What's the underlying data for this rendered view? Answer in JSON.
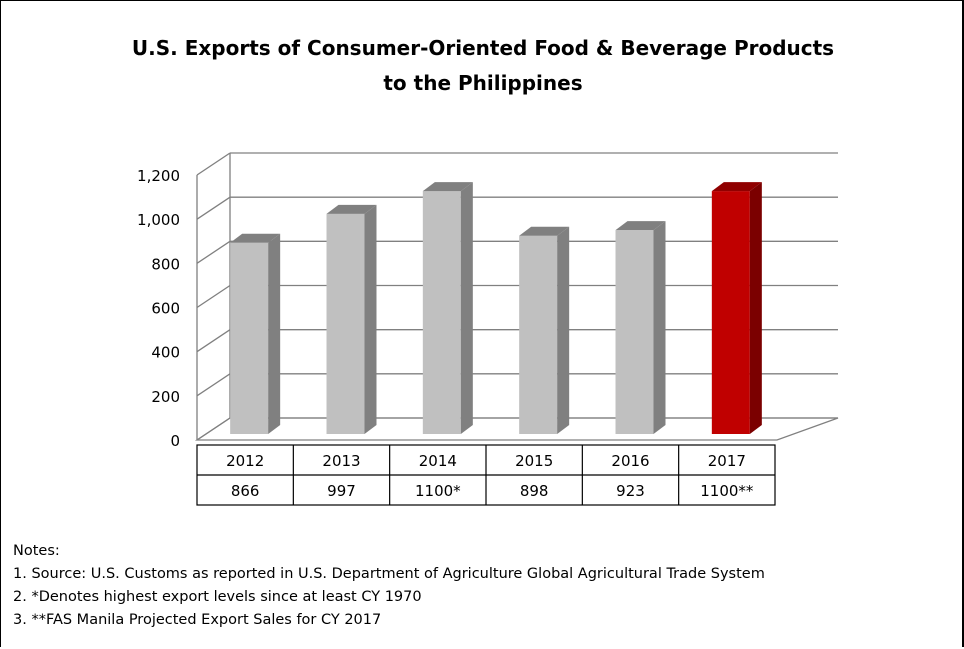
{
  "chart_data": {
    "type": "bar",
    "title_lines": [
      "U.S. Exports of  Consumer-Oriented Food & Beverage Products",
      "to the Philippines"
    ],
    "categories": [
      "2012",
      "2013",
      "2014",
      "2015",
      "2016",
      "2017"
    ],
    "values": [
      866,
      997,
      1100,
      898,
      923,
      1100
    ],
    "table_labels": [
      "866",
      "997",
      "1100*",
      "898",
      "923",
      "1100**"
    ],
    "y_ticks": [
      "1,200",
      "1,000",
      "800",
      "600",
      "400",
      "200",
      "0"
    ],
    "ylim": [
      0,
      1200
    ],
    "grid": true,
    "three_d": true,
    "colors": {
      "bar_front": "#c0c0c0",
      "bar_side": "#808080",
      "bar_top": "#808080",
      "highlight_front": "#c00000",
      "highlight_side": "#7b0000",
      "highlight_top": "#900000",
      "grid": "#808080"
    },
    "highlight_index": 5
  },
  "notes": {
    "heading": "Notes:",
    "items": [
      "1. Source: U.S. Customs as reported in U.S. Department of Agriculture  Global Agricultural  Trade System",
      "2. *Denotes highest export levels since at least CY 1970",
      "3. **FAS Manila Projected Export Sales for CY 2017"
    ]
  }
}
